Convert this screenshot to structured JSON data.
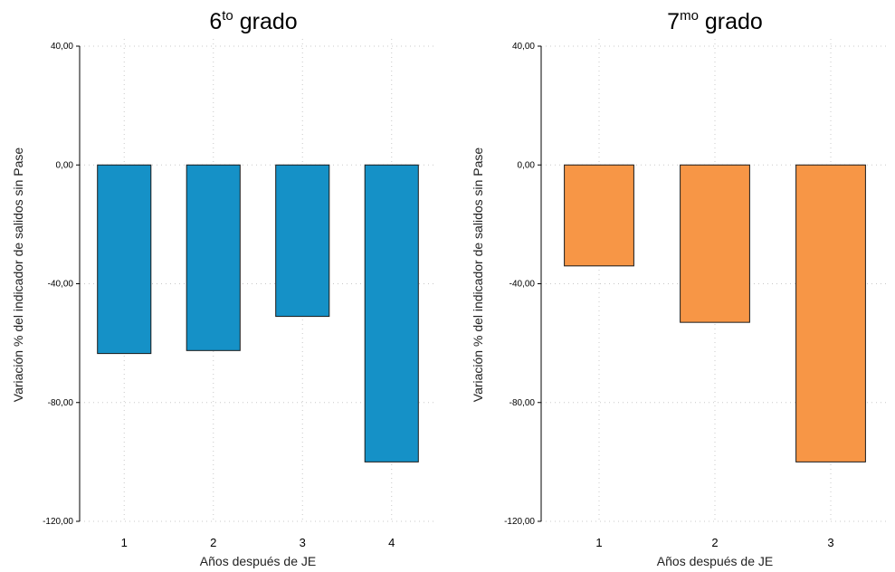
{
  "chart_data": [
    {
      "type": "bar",
      "title": {
        "base": "6",
        "sup": "to",
        "rest": " grado"
      },
      "categories": [
        "1",
        "2",
        "3",
        "4"
      ],
      "values": [
        -63.5,
        -62.5,
        -51,
        -100
      ],
      "xlabel": "Años después de JE",
      "ylabel": "Variación % del indicador de salidos sin Pase",
      "ylim": [
        -120,
        40
      ],
      "yticks": [
        40,
        0,
        -40,
        -80,
        -120
      ],
      "ytick_labels": [
        "40,00",
        "0,00",
        "-40,00",
        "-80,00",
        "-120,00"
      ],
      "bar_color": "#1591c7",
      "grid": true
    },
    {
      "type": "bar",
      "title": {
        "base": "7",
        "sup": "mo",
        "rest": " grado"
      },
      "categories": [
        "1",
        "2",
        "3"
      ],
      "values": [
        -34,
        -53,
        -100
      ],
      "xlabel": "Años después de JE",
      "ylabel": "Variación % del indicador de salidos sin Pase",
      "ylim": [
        -120,
        40
      ],
      "yticks": [
        40,
        0,
        -40,
        -80,
        -120
      ],
      "ytick_labels": [
        "40,00",
        "0,00",
        "-40,00",
        "-80,00",
        "-120,00"
      ],
      "bar_color": "#f79646",
      "grid": true
    }
  ]
}
